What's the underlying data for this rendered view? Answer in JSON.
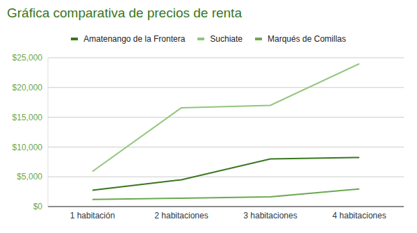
{
  "chart_data": {
    "type": "line",
    "title": "Gráfica comparativa de precios de renta",
    "categories": [
      "1 habitación",
      "2 habitaciones",
      "3 habitaciones",
      "4 habitaciones"
    ],
    "series": [
      {
        "name": "Amatenango de la Frontera",
        "color": "#38761d",
        "values": [
          2750,
          4500,
          8000,
          8250
        ]
      },
      {
        "name": "Suchiate",
        "color": "#93c47d",
        "values": [
          5900,
          16600,
          17000,
          24000
        ]
      },
      {
        "name": "Marqués de Comillas",
        "color": "#6aa84f",
        "values": [
          1200,
          1400,
          1650,
          2950
        ]
      }
    ],
    "ylim": [
      0,
      25000
    ],
    "yticks": [
      {
        "value": 0,
        "label": "$0"
      },
      {
        "value": 5000,
        "label": "$5,000"
      },
      {
        "value": 10000,
        "label": "$10,000"
      },
      {
        "value": 15000,
        "label": "$15,000"
      },
      {
        "value": 20000,
        "label": "$20,000"
      },
      {
        "value": 25000,
        "label": "$25,000"
      }
    ],
    "grid": true,
    "legend": "top"
  }
}
